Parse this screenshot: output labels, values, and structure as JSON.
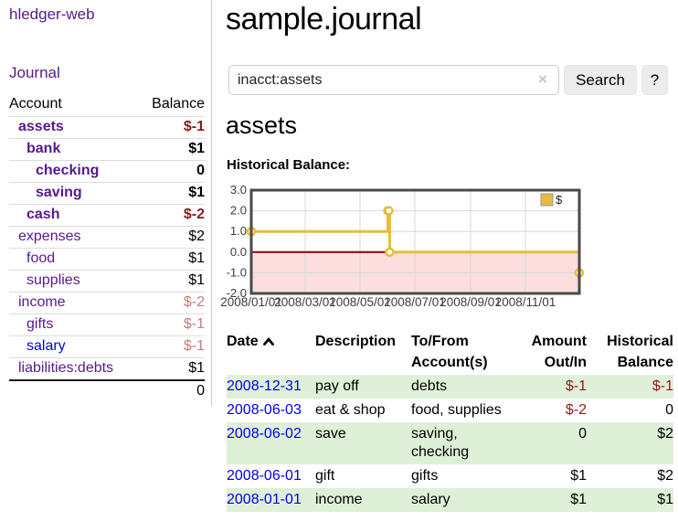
{
  "app": {
    "name": "hledger-web"
  },
  "colors": {
    "link_purple": "#551A8B",
    "link_blue": "#0000EE",
    "negative_bold": "#8e1a1a",
    "negative_soft": "#c17d7d",
    "row_stripe_green": "#dff0d8",
    "chart_line_gold": "#e8bc3c",
    "chart_negative_region": "#fcdede",
    "chart_zero_line": "#8b0000",
    "chart_border": "#4a4a4a"
  },
  "icons": {
    "sort_ascending": "chevron-up",
    "clear_search": "×"
  },
  "sidebar": {
    "nav": [
      {
        "label": "Journal"
      }
    ],
    "table": {
      "headers": {
        "account": "Account",
        "balance": "Balance"
      },
      "accounts": [
        {
          "name": "assets",
          "balance": "$-1"
        },
        {
          "name": "bank",
          "balance": "$1"
        },
        {
          "name": "checking",
          "balance": "0"
        },
        {
          "name": "saving",
          "balance": "$1"
        },
        {
          "name": "cash",
          "balance": "$-2"
        },
        {
          "name": "expenses",
          "balance": "$2"
        },
        {
          "name": "food",
          "balance": "$1"
        },
        {
          "name": "supplies",
          "balance": "$1"
        },
        {
          "name": "income",
          "balance": "$-2"
        },
        {
          "name": "gifts",
          "balance": "$-1"
        },
        {
          "name": "salary",
          "balance": "$-1"
        },
        {
          "name": "liabilities:debts",
          "balance": "$1"
        }
      ],
      "total": "0"
    }
  },
  "main": {
    "title": "sample.journal",
    "search": {
      "value": "inacct:assets",
      "clear_icon": "×",
      "button": "Search",
      "help_button": "?"
    },
    "account_heading": "assets",
    "chart_label": "Historical Balance:",
    "register": {
      "headers": {
        "date": "Date",
        "description": "Description",
        "accounts": "To/From Account(s)",
        "amount": "Amount Out/In",
        "balance": "Historical Balance"
      },
      "rows": [
        {
          "date": "2008-12-31",
          "description": "pay off",
          "accounts": "debts",
          "amount": "$-1",
          "balance": "$-1"
        },
        {
          "date": "2008-06-03",
          "description": "eat & shop",
          "accounts": "food, supplies",
          "amount": "$-2",
          "balance": "0"
        },
        {
          "date": "2008-06-02",
          "description": "save",
          "accounts": "saving, checking",
          "amount": "0",
          "balance": "$2"
        },
        {
          "date": "2008-06-01",
          "description": "gift",
          "accounts": "gifts",
          "amount": "$1",
          "balance": "$2"
        },
        {
          "date": "2008-01-01",
          "description": "income",
          "accounts": "salary",
          "amount": "$1",
          "balance": "$1"
        }
      ]
    }
  },
  "chart_data": {
    "type": "line",
    "step": true,
    "title": "Historical Balance:",
    "xlabel": "",
    "ylabel": "",
    "x_range": [
      "2008-01-01",
      "2008-12-31"
    ],
    "y_range": [
      -2.0,
      3.0
    ],
    "y_ticks": [
      3.0,
      2.0,
      1.0,
      0.0,
      -1.0,
      -2.0
    ],
    "x_ticks": [
      {
        "date": "2008-01-01",
        "label": "2008/01/01"
      },
      {
        "date": "2008-03-01",
        "label": "2008/03/01"
      },
      {
        "date": "2008-05-01",
        "label": "2008/05/01"
      },
      {
        "date": "2008-07-01",
        "label": "2008/07/01"
      },
      {
        "date": "2008-09-01",
        "label": "2008/09/01"
      },
      {
        "date": "2008-11-01",
        "label": "2008/11/01"
      }
    ],
    "series": [
      {
        "name": "$",
        "color": "#e8bc3c",
        "points": [
          {
            "date": "2008-01-01",
            "value": 1
          },
          {
            "date": "2008-06-01",
            "value": 2
          },
          {
            "date": "2008-06-02",
            "value": 2
          },
          {
            "date": "2008-06-03",
            "value": 0
          },
          {
            "date": "2008-12-31",
            "value": -1
          }
        ]
      }
    ],
    "legend": {
      "position": "top-right",
      "entries": [
        "$"
      ]
    },
    "grid": true,
    "negative_region_color": "#fcdede",
    "zero_line_color": "#8b0000"
  }
}
